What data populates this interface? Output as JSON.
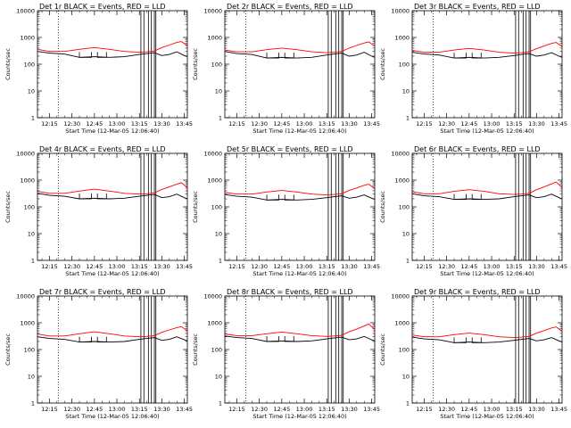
{
  "figure": {
    "x_tick_labels": [
      "12:15",
      "12:30",
      "12:45",
      "13:00",
      "13:15",
      "13:30",
      "13:45"
    ],
    "y_tick_labels": [
      "1",
      "10",
      "100",
      "1000",
      "10000"
    ],
    "ylabel": "Counts/sec",
    "xlabel": "Start Time (12-Mar-05 12:06:40)",
    "series_legend": "BLACK = Events, RED = LLD",
    "colors": {
      "events": "#000000",
      "lld": "#ff0000",
      "axes": "#000000"
    }
  },
  "chart_data": [
    {
      "type": "line",
      "title": "Det 1r BLACK = Events, RED = LLD",
      "xlabel": "Start Time (12-Mar-05 12:06:40)",
      "ylabel": "Counts/sec",
      "x_range": [
        "12:07",
        "13:47"
      ],
      "ylim": [
        1,
        10000
      ],
      "y_scale": "log",
      "marker_time": "12:21",
      "gaps": [
        [
          "12:35",
          "12:43"
        ],
        [
          "12:47",
          "12:53"
        ]
      ],
      "vertical_lines": [
        "13:16",
        "13:18",
        "13:21",
        "13:23",
        "13:25",
        "13:26"
      ],
      "series": [
        {
          "name": "Events",
          "color": "#000000",
          "x": [
            "12:07",
            "12:15",
            "12:25",
            "12:35",
            "12:45",
            "12:55",
            "13:05",
            "13:15",
            "13:20",
            "13:25",
            "13:30",
            "13:35",
            "13:40",
            "13:45",
            "13:47"
          ],
          "y": [
            300,
            260,
            240,
            180,
            190,
            180,
            190,
            230,
            250,
            270,
            210,
            230,
            290,
            210,
            190
          ]
        },
        {
          "name": "LLD",
          "color": "#ff0000",
          "x": [
            "12:07",
            "12:15",
            "12:25",
            "12:35",
            "12:45",
            "12:55",
            "13:05",
            "13:15",
            "13:20",
            "13:25",
            "13:30",
            "13:35",
            "13:40",
            "13:43",
            "13:47"
          ],
          "y": [
            360,
            300,
            300,
            360,
            420,
            360,
            300,
            280,
            290,
            310,
            420,
            520,
            650,
            700,
            500
          ]
        }
      ]
    },
    {
      "type": "line",
      "title": "Det 2r BLACK = Events, RED = LLD",
      "xlabel": "Start Time (12-Mar-05 12:06:40)",
      "ylabel": "Counts/sec",
      "x_range": [
        "12:07",
        "13:47"
      ],
      "ylim": [
        1,
        10000
      ],
      "y_scale": "log",
      "marker_time": "12:21",
      "gaps": [
        [
          "12:35",
          "12:43"
        ],
        [
          "12:47",
          "12:53"
        ]
      ],
      "vertical_lines": [
        "13:16",
        "13:18",
        "13:21",
        "13:23",
        "13:25",
        "13:26"
      ],
      "series": [
        {
          "name": "Events",
          "color": "#000000",
          "x": [
            "12:07",
            "12:15",
            "12:25",
            "12:35",
            "12:45",
            "12:55",
            "13:05",
            "13:15",
            "13:20",
            "13:25",
            "13:30",
            "13:35",
            "13:40",
            "13:45",
            "13:47"
          ],
          "y": [
            300,
            250,
            230,
            170,
            180,
            170,
            180,
            220,
            240,
            260,
            200,
            220,
            280,
            200,
            180
          ]
        },
        {
          "name": "LLD",
          "color": "#ff0000",
          "x": [
            "12:07",
            "12:15",
            "12:25",
            "12:35",
            "12:45",
            "12:55",
            "13:05",
            "13:15",
            "13:20",
            "13:25",
            "13:30",
            "13:35",
            "13:40",
            "13:43",
            "13:47"
          ],
          "y": [
            340,
            290,
            290,
            350,
            400,
            350,
            290,
            270,
            280,
            300,
            400,
            500,
            620,
            680,
            480
          ]
        }
      ]
    },
    {
      "type": "line",
      "title": "Det 3r BLACK = Events, RED = LLD",
      "xlabel": "Start Time (12-Mar-05 12:06:40)",
      "ylabel": "Counts/sec",
      "x_range": [
        "12:07",
        "13:47"
      ],
      "ylim": [
        1,
        10000
      ],
      "y_scale": "log",
      "marker_time": "12:21",
      "gaps": [
        [
          "12:35",
          "12:43"
        ],
        [
          "12:47",
          "12:53"
        ]
      ],
      "vertical_lines": [
        "13:16",
        "13:18",
        "13:21",
        "13:23",
        "13:25",
        "13:26"
      ],
      "series": [
        {
          "name": "Events",
          "color": "#000000",
          "x": [
            "12:07",
            "12:15",
            "12:25",
            "12:35",
            "12:45",
            "12:55",
            "13:05",
            "13:15",
            "13:20",
            "13:25",
            "13:30",
            "13:35",
            "13:40",
            "13:45",
            "13:47"
          ],
          "y": [
            280,
            240,
            220,
            170,
            180,
            170,
            180,
            210,
            230,
            250,
            200,
            220,
            270,
            200,
            180
          ]
        },
        {
          "name": "LLD",
          "color": "#ff0000",
          "x": [
            "12:07",
            "12:15",
            "12:25",
            "12:35",
            "12:45",
            "12:55",
            "13:05",
            "13:15",
            "13:20",
            "13:25",
            "13:30",
            "13:35",
            "13:40",
            "13:43",
            "13:47"
          ],
          "y": [
            330,
            280,
            280,
            340,
            390,
            340,
            280,
            260,
            270,
            290,
            380,
            480,
            600,
            650,
            460
          ]
        }
      ]
    },
    {
      "type": "line",
      "title": "Det 4r BLACK = Events, RED = LLD",
      "xlabel": "Start Time (12-Mar-05 12:06:40)",
      "ylabel": "Counts/sec",
      "x_range": [
        "12:07",
        "13:47"
      ],
      "ylim": [
        1,
        10000
      ],
      "y_scale": "log",
      "marker_time": "12:21",
      "gaps": [
        [
          "12:35",
          "12:43"
        ],
        [
          "12:47",
          "12:53"
        ]
      ],
      "vertical_lines": [
        "13:16",
        "13:18",
        "13:21",
        "13:23",
        "13:25",
        "13:26"
      ],
      "series": [
        {
          "name": "Events",
          "color": "#000000",
          "x": [
            "12:07",
            "12:15",
            "12:25",
            "12:35",
            "12:45",
            "12:55",
            "13:05",
            "13:15",
            "13:20",
            "13:25",
            "13:30",
            "13:35",
            "13:40",
            "13:45",
            "13:47"
          ],
          "y": [
            320,
            270,
            250,
            200,
            210,
            200,
            210,
            250,
            270,
            290,
            220,
            240,
            300,
            220,
            200
          ]
        },
        {
          "name": "LLD",
          "color": "#ff0000",
          "x": [
            "12:07",
            "12:15",
            "12:25",
            "12:35",
            "12:45",
            "12:55",
            "13:05",
            "13:15",
            "13:20",
            "13:25",
            "13:30",
            "13:35",
            "13:40",
            "13:43",
            "13:47"
          ],
          "y": [
            380,
            320,
            320,
            390,
            460,
            390,
            320,
            300,
            310,
            330,
            450,
            560,
            700,
            800,
            520
          ]
        }
      ]
    },
    {
      "type": "line",
      "title": "Det 5r BLACK = Events, RED = LLD",
      "xlabel": "Start Time (12-Mar-05 12:06:40)",
      "ylabel": "Counts/sec",
      "x_range": [
        "12:07",
        "13:47"
      ],
      "ylim": [
        1,
        10000
      ],
      "y_scale": "log",
      "marker_time": "12:21",
      "gaps": [
        [
          "12:35",
          "12:43"
        ],
        [
          "12:47",
          "12:53"
        ]
      ],
      "vertical_lines": [
        "13:16",
        "13:18",
        "13:21",
        "13:23",
        "13:25",
        "13:26"
      ],
      "series": [
        {
          "name": "Events",
          "color": "#000000",
          "x": [
            "12:07",
            "12:15",
            "12:25",
            "12:35",
            "12:45",
            "12:55",
            "13:05",
            "13:15",
            "13:20",
            "13:25",
            "13:30",
            "13:35",
            "13:40",
            "13:45",
            "13:47"
          ],
          "y": [
            290,
            250,
            230,
            180,
            190,
            180,
            190,
            220,
            240,
            260,
            210,
            230,
            280,
            210,
            190
          ]
        },
        {
          "name": "LLD",
          "color": "#ff0000",
          "x": [
            "12:07",
            "12:15",
            "12:25",
            "12:35",
            "12:45",
            "12:55",
            "13:05",
            "13:15",
            "13:20",
            "13:25",
            "13:30",
            "13:35",
            "13:40",
            "13:43",
            "13:47"
          ],
          "y": [
            350,
            300,
            300,
            360,
            410,
            360,
            300,
            280,
            290,
            310,
            410,
            510,
            640,
            700,
            490
          ]
        }
      ]
    },
    {
      "type": "line",
      "title": "Det 6r BLACK = Events, RED = LLD",
      "xlabel": "Start Time (12-Mar-05 12:06:40)",
      "ylabel": "Counts/sec",
      "x_range": [
        "12:07",
        "13:47"
      ],
      "ylim": [
        1,
        10000
      ],
      "y_scale": "log",
      "marker_time": "12:21",
      "gaps": [
        [
          "12:35",
          "12:43"
        ],
        [
          "12:47",
          "12:53"
        ]
      ],
      "vertical_lines": [
        "13:16",
        "13:18",
        "13:21",
        "13:23",
        "13:25",
        "13:26"
      ],
      "series": [
        {
          "name": "Events",
          "color": "#000000",
          "x": [
            "12:07",
            "12:15",
            "12:25",
            "12:35",
            "12:45",
            "12:55",
            "13:05",
            "13:15",
            "13:20",
            "13:25",
            "13:30",
            "13:35",
            "13:40",
            "13:45",
            "13:47"
          ],
          "y": [
            310,
            260,
            240,
            190,
            200,
            190,
            200,
            240,
            260,
            280,
            220,
            240,
            300,
            220,
            200
          ]
        },
        {
          "name": "LLD",
          "color": "#ff0000",
          "x": [
            "12:07",
            "12:15",
            "12:25",
            "12:35",
            "12:45",
            "12:55",
            "13:05",
            "13:15",
            "13:20",
            "13:25",
            "13:30",
            "13:35",
            "13:40",
            "13:43",
            "13:47"
          ],
          "y": [
            370,
            310,
            310,
            380,
            440,
            380,
            310,
            290,
            300,
            320,
            440,
            560,
            720,
            850,
            540
          ]
        }
      ]
    },
    {
      "type": "line",
      "title": "Det 7r BLACK = Events, RED = LLD",
      "xlabel": "Start Time (12-Mar-05 12:06:40)",
      "ylabel": "Counts/sec",
      "x_range": [
        "12:07",
        "13:47"
      ],
      "ylim": [
        1,
        10000
      ],
      "y_scale": "log",
      "marker_time": "12:21",
      "gaps": [
        [
          "12:35",
          "12:43"
        ],
        [
          "12:47",
          "12:53"
        ]
      ],
      "vertical_lines": [
        "13:16",
        "13:18",
        "13:21",
        "13:23",
        "13:25",
        "13:26"
      ],
      "series": [
        {
          "name": "Events",
          "color": "#000000",
          "x": [
            "12:07",
            "12:15",
            "12:25",
            "12:35",
            "12:45",
            "12:55",
            "13:05",
            "13:15",
            "13:20",
            "13:25",
            "13:30",
            "13:35",
            "13:40",
            "13:45",
            "13:47"
          ],
          "y": [
            300,
            260,
            240,
            190,
            200,
            190,
            200,
            240,
            260,
            280,
            220,
            240,
            300,
            230,
            210
          ]
        },
        {
          "name": "LLD",
          "color": "#ff0000",
          "x": [
            "12:07",
            "12:15",
            "12:25",
            "12:35",
            "12:45",
            "12:55",
            "13:05",
            "13:15",
            "13:20",
            "13:25",
            "13:30",
            "13:35",
            "13:40",
            "13:43",
            "13:47"
          ],
          "y": [
            380,
            320,
            320,
            390,
            460,
            390,
            320,
            300,
            310,
            330,
            440,
            540,
            660,
            720,
            500
          ]
        }
      ]
    },
    {
      "type": "line",
      "title": "Det 8r BLACK = Events, RED = LLD",
      "xlabel": "Start Time (12-Mar-05 12:06:40)",
      "ylabel": "Counts/sec",
      "x_range": [
        "12:07",
        "13:47"
      ],
      "ylim": [
        1,
        10000
      ],
      "y_scale": "log",
      "marker_time": "12:21",
      "gaps": [
        [
          "12:35",
          "12:43"
        ],
        [
          "12:47",
          "12:53"
        ]
      ],
      "vertical_lines": [
        "13:16",
        "13:18",
        "13:21",
        "13:23",
        "13:25",
        "13:26"
      ],
      "series": [
        {
          "name": "Events",
          "color": "#000000",
          "x": [
            "12:07",
            "12:15",
            "12:25",
            "12:35",
            "12:45",
            "12:55",
            "13:05",
            "13:15",
            "13:20",
            "13:25",
            "13:30",
            "13:35",
            "13:40",
            "13:45",
            "13:47"
          ],
          "y": [
            320,
            280,
            260,
            200,
            210,
            200,
            210,
            250,
            270,
            290,
            230,
            250,
            310,
            230,
            210
          ]
        },
        {
          "name": "LLD",
          "color": "#ff0000",
          "x": [
            "12:07",
            "12:15",
            "12:25",
            "12:35",
            "12:45",
            "12:55",
            "13:05",
            "13:15",
            "13:20",
            "13:25",
            "13:30",
            "13:35",
            "13:40",
            "13:43",
            "13:47"
          ],
          "y": [
            380,
            330,
            330,
            390,
            450,
            390,
            330,
            310,
            320,
            340,
            460,
            580,
            760,
            900,
            560
          ]
        }
      ]
    },
    {
      "type": "line",
      "title": "Det 9r BLACK = Events, RED = LLD",
      "xlabel": "Start Time (12-Mar-05 12:06:40)",
      "ylabel": "Counts/sec",
      "x_range": [
        "12:07",
        "13:47"
      ],
      "ylim": [
        1,
        10000
      ],
      "y_scale": "log",
      "marker_time": "12:21",
      "gaps": [
        [
          "12:35",
          "12:43"
        ],
        [
          "12:47",
          "12:53"
        ]
      ],
      "vertical_lines": [
        "13:16",
        "13:18",
        "13:21",
        "13:23",
        "13:25",
        "13:26"
      ],
      "series": [
        {
          "name": "Events",
          "color": "#000000",
          "x": [
            "12:07",
            "12:15",
            "12:25",
            "12:35",
            "12:45",
            "12:55",
            "13:05",
            "13:15",
            "13:20",
            "13:25",
            "13:30",
            "13:35",
            "13:40",
            "13:45",
            "13:47"
          ],
          "y": [
            290,
            250,
            230,
            180,
            190,
            180,
            190,
            220,
            240,
            260,
            210,
            230,
            280,
            210,
            190
          ]
        },
        {
          "name": "LLD",
          "color": "#ff0000",
          "x": [
            "12:07",
            "12:15",
            "12:25",
            "12:35",
            "12:45",
            "12:55",
            "13:05",
            "13:15",
            "13:20",
            "13:25",
            "13:30",
            "13:35",
            "13:40",
            "13:43",
            "13:47"
          ],
          "y": [
            350,
            300,
            300,
            360,
            410,
            360,
            300,
            280,
            290,
            310,
            410,
            510,
            640,
            700,
            490
          ]
        }
      ]
    }
  ]
}
